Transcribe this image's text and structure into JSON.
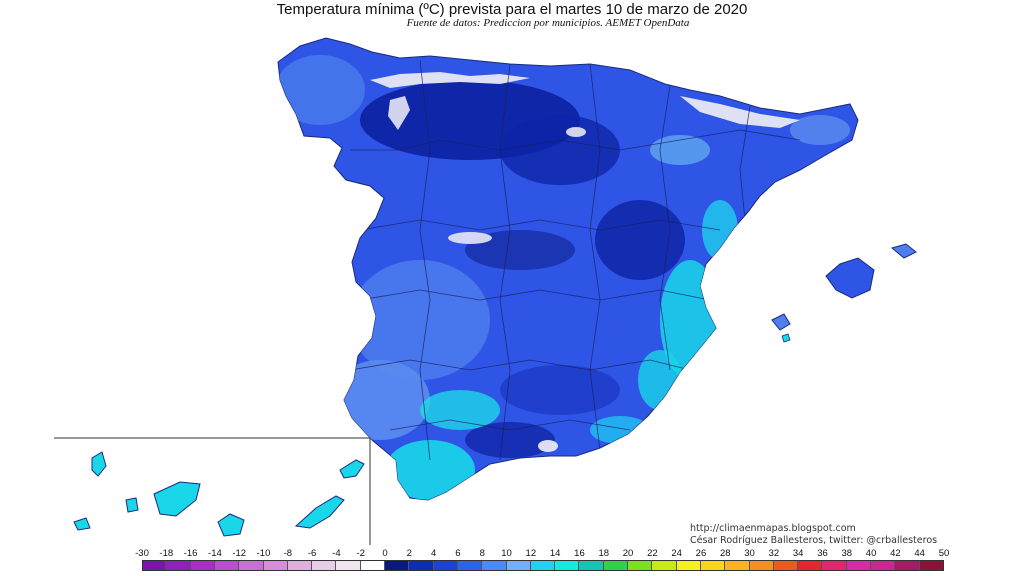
{
  "map": {
    "title": "Temperatura mínima (ºC) prevista para el martes 10 de marzo de 2020",
    "subtitle": "Fuente de datos: Prediccion por municipios. AEMET OpenData",
    "credits": {
      "blog": "http://climaenmapas.blogspot.com",
      "author": "César Rodríguez Ballesteros, twitter: @crballesteros"
    },
    "colors": {
      "cold_core": "#0b1f9e",
      "land_base": "#2f55e6",
      "mild": "#5b8cf0",
      "warm": "#19d6e8",
      "snow": "#e8e8f4"
    }
  },
  "legend": {
    "labels": [
      "-30",
      "-18",
      "-16",
      "-14",
      "-12",
      "-10",
      "-8",
      "-6",
      "-4",
      "-2",
      "0",
      "2",
      "4",
      "6",
      "8",
      "10",
      "12",
      "14",
      "16",
      "18",
      "20",
      "22",
      "24",
      "26",
      "28",
      "30",
      "32",
      "34",
      "36",
      "38",
      "40",
      "42",
      "44",
      "50"
    ],
    "colors": [
      "#7a16a8",
      "#8e23b8",
      "#a92fc4",
      "#b84fcd",
      "#c86fd4",
      "#d48fd8",
      "#ddb0dd",
      "#e6cfe6",
      "#efe6ef",
      "#ffffff",
      "#081a7c",
      "#0d2cb8",
      "#1c42de",
      "#2c62ee",
      "#4b8af5",
      "#74b0f8",
      "#1ed2f2",
      "#12ecdc",
      "#10c8b0",
      "#2ed24c",
      "#7de018",
      "#c8ec10",
      "#f4f21a",
      "#f8d618",
      "#f8b41a",
      "#f49020",
      "#f05820",
      "#e82430",
      "#e4246c",
      "#dc28a4",
      "#c82890",
      "#a41c64",
      "#8a1438"
    ]
  }
}
